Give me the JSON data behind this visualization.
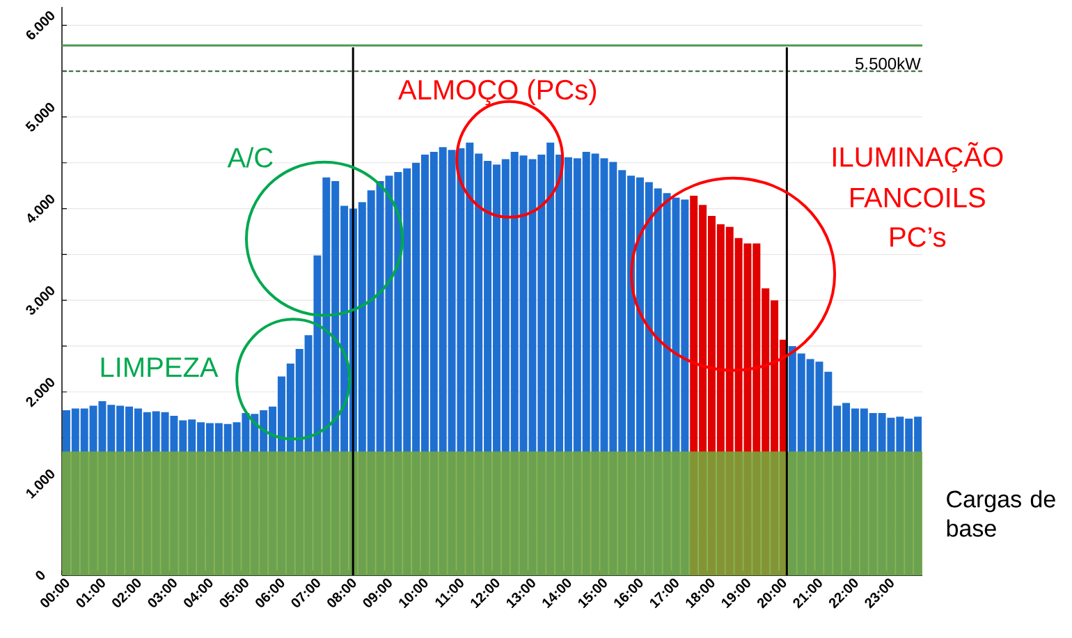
{
  "chart_data": {
    "type": "bar",
    "x": [
      0.125,
      0.375,
      0.625,
      0.875,
      1.125,
      1.375,
      1.625,
      1.875,
      2.125,
      2.375,
      2.625,
      2.875,
      3.125,
      3.375,
      3.625,
      3.875,
      4.125,
      4.375,
      4.625,
      4.875,
      5.125,
      5.375,
      5.625,
      5.875,
      6.125,
      6.375,
      6.625,
      6.875,
      7.125,
      7.375,
      7.625,
      7.875,
      8.125,
      8.375,
      8.625,
      8.875,
      9.125,
      9.375,
      9.625,
      9.875,
      10.125,
      10.375,
      10.625,
      10.875,
      11.125,
      11.375,
      11.625,
      11.875,
      12.125,
      12.375,
      12.625,
      12.875,
      13.125,
      13.375,
      13.625,
      13.875,
      14.125,
      14.375,
      14.625,
      14.875,
      15.125,
      15.375,
      15.625,
      15.875,
      16.125,
      16.375,
      16.625,
      16.875,
      17.125,
      17.375,
      17.625,
      17.875,
      18.125,
      18.375,
      18.625,
      18.875,
      19.125,
      19.375,
      19.625,
      19.875,
      20.125,
      20.375,
      20.625,
      20.875,
      21.125,
      21.375,
      21.625,
      21.875,
      22.125,
      22.375,
      22.625,
      22.875,
      23.125,
      23.375,
      23.625,
      23.875
    ],
    "values": [
      1800,
      1820,
      1820,
      1850,
      1900,
      1860,
      1850,
      1840,
      1820,
      1780,
      1790,
      1780,
      1740,
      1690,
      1700,
      1670,
      1660,
      1660,
      1650,
      1670,
      1770,
      1760,
      1800,
      1840,
      2170,
      2310,
      2470,
      2620,
      3490,
      4340,
      4300,
      4030,
      4000,
      4070,
      4200,
      4300,
      4360,
      4400,
      4440,
      4500,
      4590,
      4620,
      4670,
      4640,
      4660,
      4720,
      4600,
      4520,
      4480,
      4540,
      4620,
      4580,
      4540,
      4590,
      4720,
      4590,
      4560,
      4550,
      4620,
      4600,
      4550,
      4510,
      4420,
      4360,
      4340,
      4290,
      4220,
      4170,
      4120,
      4100,
      4140,
      4040,
      3920,
      3830,
      3800,
      3680,
      3620,
      3620,
      3130,
      3000,
      2570,
      2500,
      2420,
      2360,
      2330,
      2220,
      1850,
      1880,
      1820,
      1820,
      1770,
      1770,
      1720,
      1730,
      1710,
      1730
    ],
    "colors": [
      "#1f6fd1",
      "#1f6fd1",
      "#1f6fd1",
      "#1f6fd1",
      "#1f6fd1",
      "#1f6fd1",
      "#1f6fd1",
      "#1f6fd1",
      "#1f6fd1",
      "#1f6fd1",
      "#1f6fd1",
      "#1f6fd1",
      "#1f6fd1",
      "#1f6fd1",
      "#1f6fd1",
      "#1f6fd1",
      "#1f6fd1",
      "#1f6fd1",
      "#1f6fd1",
      "#1f6fd1",
      "#1f6fd1",
      "#1f6fd1",
      "#1f6fd1",
      "#1f6fd1",
      "#1f6fd1",
      "#1f6fd1",
      "#1f6fd1",
      "#1f6fd1",
      "#1f6fd1",
      "#1f6fd1",
      "#1f6fd1",
      "#1f6fd1",
      "#1f6fd1",
      "#1f6fd1",
      "#1f6fd1",
      "#1f6fd1",
      "#1f6fd1",
      "#1f6fd1",
      "#1f6fd1",
      "#1f6fd1",
      "#1f6fd1",
      "#1f6fd1",
      "#1f6fd1",
      "#1f6fd1",
      "#1f6fd1",
      "#1f6fd1",
      "#1f6fd1",
      "#1f6fd1",
      "#1f6fd1",
      "#1f6fd1",
      "#1f6fd1",
      "#1f6fd1",
      "#1f6fd1",
      "#1f6fd1",
      "#1f6fd1",
      "#1f6fd1",
      "#1f6fd1",
      "#1f6fd1",
      "#1f6fd1",
      "#1f6fd1",
      "#1f6fd1",
      "#1f6fd1",
      "#1f6fd1",
      "#1f6fd1",
      "#1f6fd1",
      "#1f6fd1",
      "#1f6fd1",
      "#1f6fd1",
      "#1f6fd1",
      "#1f6fd1",
      "#e00000",
      "#e00000",
      "#e00000",
      "#e00000",
      "#e00000",
      "#e00000",
      "#e00000",
      "#e00000",
      "#e00000",
      "#e00000",
      "#e00000",
      "#1f6fd1",
      "#1f6fd1",
      "#1f6fd1",
      "#1f6fd1",
      "#1f6fd1",
      "#1f6fd1",
      "#1f6fd1",
      "#1f6fd1",
      "#1f6fd1",
      "#1f6fd1",
      "#1f6fd1",
      "#1f6fd1",
      "#1f6fd1",
      "#1f6fd1",
      "#1f6fd1"
    ],
    "xlim": [
      0,
      24
    ],
    "xticks": [
      {
        "value": 0,
        "label": "00:00"
      },
      {
        "value": 1,
        "label": "01:00"
      },
      {
        "value": 2,
        "label": "02:00"
      },
      {
        "value": 3,
        "label": "03:00"
      },
      {
        "value": 4,
        "label": "04:00"
      },
      {
        "value": 5,
        "label": "05:00"
      },
      {
        "value": 6,
        "label": "06:00"
      },
      {
        "value": 7,
        "label": "07:00"
      },
      {
        "value": 8,
        "label": "08:00"
      },
      {
        "value": 9,
        "label": "09:00"
      },
      {
        "value": 10,
        "label": "10:00"
      },
      {
        "value": 11,
        "label": "11:00"
      },
      {
        "value": 12,
        "label": "12:00"
      },
      {
        "value": 13,
        "label": "13:00"
      },
      {
        "value": 14,
        "label": "14:00"
      },
      {
        "value": 15,
        "label": "15:00"
      },
      {
        "value": 16,
        "label": "16:00"
      },
      {
        "value": 17,
        "label": "17:00"
      },
      {
        "value": 18,
        "label": "18:00"
      },
      {
        "value": 19,
        "label": "19:00"
      },
      {
        "value": 20,
        "label": "20:00"
      },
      {
        "value": 21,
        "label": "21:00"
      },
      {
        "value": 22,
        "label": "22:00"
      },
      {
        "value": 23,
        "label": "23:00"
      }
    ],
    "ylim": [
      0,
      6200
    ],
    "yticks": [
      0,
      {
        "value": 500,
        "label": null
      },
      {
        "value": 1000,
        "label": "1.000"
      },
      {
        "value": 1500,
        "label": null
      },
      {
        "value": 2000,
        "label": "2.000"
      },
      {
        "value": 2500,
        "label": null
      },
      {
        "value": 3000,
        "label": "3.000"
      },
      {
        "value": 3500,
        "label": null
      },
      {
        "value": 4000,
        "label": "4.000"
      },
      {
        "value": 4500,
        "label": null
      },
      {
        "value": 5000,
        "label": "5.000"
      },
      {
        "value": 5500,
        "label": null
      },
      {
        "value": 6000,
        "label": "6.000"
      }
    ],
    "grid": "y",
    "ref_lines": [
      {
        "axis": "y",
        "value": 5780,
        "color": "#4f9a4f",
        "line_style": "solid"
      },
      {
        "axis": "y",
        "value": 5500,
        "label": "5.500kW",
        "color": "#2f5f2f",
        "line_style": "dashed"
      },
      {
        "axis": "x",
        "value": 8.12,
        "color": "#000000",
        "line_style": "solid"
      },
      {
        "axis": "x",
        "value": 20.22,
        "color": "#000000",
        "line_style": "solid"
      }
    ],
    "bands": [
      {
        "axis": "y",
        "from": 0,
        "to": 1350,
        "label": "Cargas de base",
        "color": "#76a83c"
      }
    ],
    "annotations": [
      "A/C",
      "LIMPEZA",
      "ALMOÇO (PCs)",
      "ILUMINAÇÃO",
      "FANCOILS",
      "PC’s"
    ]
  }
}
